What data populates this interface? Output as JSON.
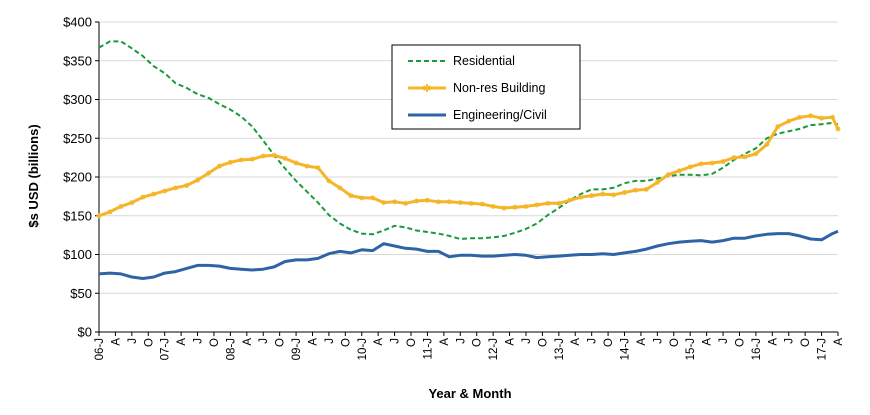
{
  "chart_data": {
    "type": "line",
    "xlabel": "Year & Month",
    "ylabel": "$s USD (billions)",
    "ylim": [
      0,
      400
    ],
    "y_ticks": [
      "$0",
      "$50",
      "$100",
      "$150",
      "$200",
      "$250",
      "$300",
      "$350",
      "$400"
    ],
    "y_tick_values": [
      0,
      50,
      100,
      150,
      200,
      250,
      300,
      350,
      400
    ],
    "x_ticks": [
      "06-J",
      "A",
      "J",
      "O",
      "07-J",
      "A",
      "J",
      "O",
      "08-J",
      "A",
      "J",
      "O",
      "09-J",
      "A",
      "J",
      "O",
      "10-J",
      "A",
      "J",
      "O",
      "11-J",
      "A",
      "J",
      "O",
      "12-J",
      "A",
      "J",
      "O",
      "13-J",
      "A",
      "J",
      "O",
      "14-J",
      "A",
      "J",
      "O",
      "15-J",
      "A",
      "J",
      "O",
      "16-J",
      "A",
      "J",
      "O",
      "17-J",
      "A"
    ],
    "x_tick_positions": [
      0,
      3,
      6,
      9,
      12,
      15,
      18,
      21,
      24,
      27,
      30,
      33,
      36,
      39,
      42,
      45,
      48,
      51,
      54,
      57,
      60,
      63,
      66,
      69,
      72,
      75,
      78,
      81,
      84,
      87,
      90,
      93,
      96,
      99,
      102,
      105,
      108,
      111,
      114,
      117,
      120,
      123,
      126,
      129,
      132,
      135
    ],
    "x_range": [
      0,
      135
    ],
    "grid": "horizontal",
    "legend_position": "top-center",
    "series": [
      {
        "name": "Residential",
        "color": "#1a9a3c",
        "style": "dashed",
        "x": [
          0,
          2,
          4,
          6,
          8,
          10,
          12,
          14,
          16,
          18,
          20,
          22,
          24,
          26,
          28,
          30,
          32,
          34,
          36,
          38,
          40,
          42,
          44,
          46,
          48,
          50,
          52,
          54,
          56,
          58,
          60,
          62,
          64,
          66,
          68,
          70,
          72,
          74,
          76,
          78,
          80,
          82,
          84,
          86,
          88,
          90,
          92,
          94,
          96,
          98,
          100,
          102,
          104,
          106,
          108,
          110,
          112,
          114,
          116,
          118,
          120,
          122,
          124,
          126,
          128,
          130,
          132,
          134,
          135
        ],
        "values": [
          367,
          375,
          375,
          366,
          356,
          343,
          334,
          321,
          315,
          307,
          302,
          294,
          287,
          278,
          265,
          247,
          228,
          211,
          195,
          181,
          167,
          151,
          140,
          132,
          127,
          126,
          131,
          137,
          135,
          131,
          129,
          127,
          124,
          120,
          121,
          121,
          122,
          124,
          128,
          133,
          140,
          151,
          160,
          170,
          178,
          184,
          184,
          186,
          192,
          195,
          195,
          198,
          201,
          203,
          203,
          202,
          204,
          212,
          222,
          230,
          237,
          250,
          256,
          259,
          262,
          267,
          268,
          270,
          268
        ]
      },
      {
        "name": "Non-res Building",
        "color": "#f5b529",
        "style": "solid-markers",
        "x": [
          0,
          2,
          4,
          6,
          8,
          10,
          12,
          14,
          16,
          18,
          20,
          22,
          24,
          26,
          28,
          30,
          32,
          34,
          36,
          38,
          40,
          42,
          44,
          46,
          48,
          50,
          52,
          54,
          56,
          58,
          60,
          62,
          64,
          66,
          68,
          70,
          72,
          74,
          76,
          78,
          80,
          82,
          84,
          86,
          88,
          90,
          92,
          94,
          96,
          98,
          100,
          102,
          104,
          106,
          108,
          110,
          112,
          114,
          116,
          118,
          120,
          122,
          124,
          126,
          128,
          130,
          132,
          134,
          135
        ],
        "values": [
          150,
          155,
          162,
          167,
          174,
          178,
          182,
          186,
          189,
          196,
          205,
          214,
          219,
          222,
          223,
          227,
          228,
          224,
          218,
          214,
          212,
          195,
          186,
          176,
          173,
          173,
          167,
          168,
          166,
          169,
          170,
          168,
          168,
          167,
          166,
          165,
          162,
          160,
          161,
          162,
          164,
          166,
          166,
          170,
          174,
          176,
          178,
          177,
          180,
          183,
          184,
          193,
          203,
          208,
          213,
          217,
          218,
          220,
          225,
          226,
          230,
          242,
          265,
          272,
          277,
          279,
          276,
          277,
          262
        ]
      },
      {
        "name": "Engineering/Civil",
        "color": "#2e64a6",
        "style": "solid",
        "x": [
          0,
          2,
          4,
          6,
          8,
          10,
          12,
          14,
          16,
          18,
          20,
          22,
          24,
          26,
          28,
          30,
          32,
          34,
          36,
          38,
          40,
          42,
          44,
          46,
          48,
          50,
          52,
          54,
          56,
          58,
          60,
          62,
          64,
          66,
          68,
          70,
          72,
          74,
          76,
          78,
          80,
          82,
          84,
          86,
          88,
          90,
          92,
          94,
          96,
          98,
          100,
          102,
          104,
          106,
          108,
          110,
          112,
          114,
          116,
          118,
          120,
          122,
          124,
          126,
          128,
          130,
          132,
          134,
          135
        ],
        "values": [
          75,
          76,
          75,
          71,
          69,
          71,
          76,
          78,
          82,
          86,
          86,
          85,
          82,
          81,
          80,
          81,
          84,
          91,
          93,
          93,
          95,
          101,
          104,
          102,
          106,
          105,
          114,
          111,
          108,
          107,
          104,
          104,
          97,
          99,
          99,
          98,
          98,
          99,
          100,
          99,
          96,
          97,
          98,
          99,
          100,
          100,
          101,
          100,
          102,
          104,
          107,
          111,
          114,
          116,
          117,
          118,
          116,
          118,
          121,
          121,
          124,
          126,
          127,
          127,
          124,
          120,
          119,
          127,
          130
        ]
      }
    ]
  }
}
